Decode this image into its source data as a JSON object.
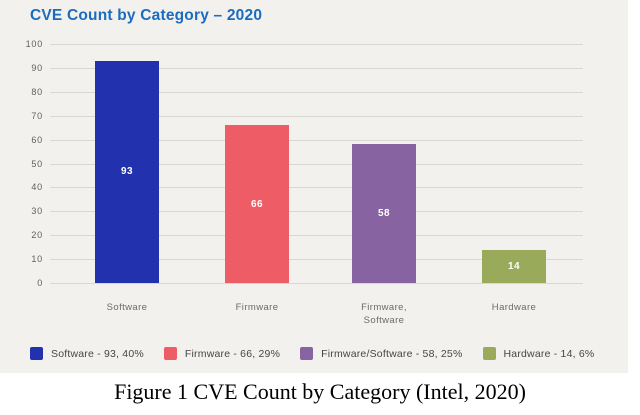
{
  "chart_data": {
    "type": "bar",
    "title": "CVE Count by Category – 2020",
    "categories": [
      "Software",
      "Firmware",
      "Firmware,\nSoftware",
      "Hardware"
    ],
    "values": [
      93,
      66,
      58,
      14
    ],
    "percentages": [
      40,
      29,
      25,
      6
    ],
    "colors": [
      "#2231ae",
      "#ee5c66",
      "#8763a1",
      "#99ab5a"
    ],
    "xlabel": "",
    "ylabel": "",
    "ylim": [
      0,
      100
    ],
    "yticks": [
      0,
      10,
      20,
      30,
      40,
      50,
      60,
      70,
      80,
      90,
      100
    ],
    "grid": true,
    "legend_position": "bottom"
  },
  "legend": {
    "items": [
      {
        "label": "Software - 93, 40%",
        "color": "#2231ae"
      },
      {
        "label": "Firmware - 66, 29%",
        "color": "#ee5c66"
      },
      {
        "label": "Firmware/Software - 58, 25%",
        "color": "#8763a1"
      },
      {
        "label": "Hardware - 14, 6%",
        "color": "#99ab5a"
      }
    ]
  },
  "caption": "Figure 1 CVE Count by Category (Intel, 2020)"
}
